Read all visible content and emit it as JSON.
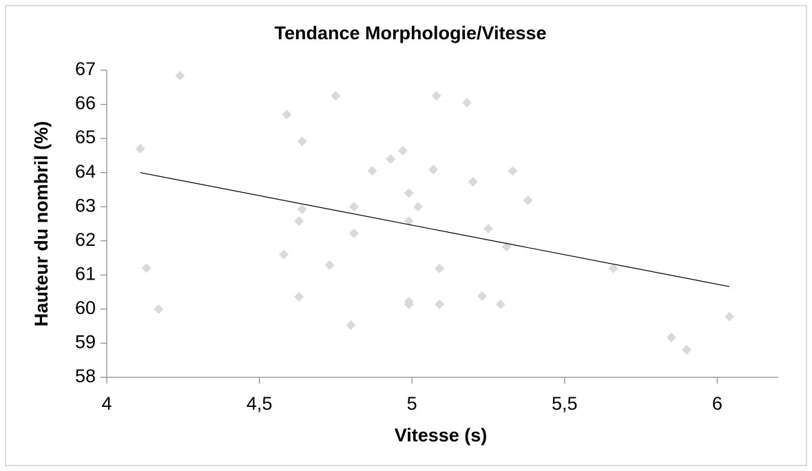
{
  "chart_data": {
    "type": "scatter",
    "title": "Tendance Morphologie/Vitesse",
    "x_label": "Vitesse (s)",
    "y_label": "Hauteur du nombril (%)",
    "color": "#d9d9d9",
    "x": [
      4.11,
      4.13,
      4.17,
      4.24,
      4.59,
      4.64,
      4.64,
      4.63,
      4.58,
      4.63,
      4.75,
      4.73,
      4.81,
      4.81,
      4.8,
      4.87,
      4.93,
      4.97,
      4.99,
      4.99,
      5.02,
      4.99,
      4.99,
      5.08,
      5.07,
      5.09,
      5.09,
      5.18,
      5.2,
      5.25,
      5.23,
      5.29,
      5.31,
      5.33,
      5.38,
      5.66,
      5.85,
      5.9,
      6.04
    ],
    "values": [
      64.7,
      61.2,
      60.0,
      66.84,
      65.7,
      64.92,
      62.92,
      62.58,
      61.6,
      60.36,
      66.25,
      61.29,
      63.0,
      62.22,
      59.53,
      64.05,
      64.4,
      64.64,
      63.4,
      62.58,
      63.0,
      60.22,
      60.14,
      66.25,
      64.09,
      61.19,
      60.14,
      66.05,
      63.73,
      62.36,
      60.38,
      60.14,
      61.83,
      64.05,
      63.19,
      61.19,
      59.17,
      58.81,
      59.78
    ],
    "trendline": {
      "color": "#000000",
      "x": [
        4.11,
        6.04
      ],
      "values": [
        64.0,
        60.66
      ]
    },
    "xlim": [
      4,
      6.2
    ],
    "xticks": [
      4,
      {
        "value": 4.5,
        "label": "4,5"
      },
      5,
      {
        "value": 5.5,
        "label": "5,5"
      },
      6
    ],
    "ylim": [
      58,
      67
    ],
    "yticks": [
      58,
      59,
      60,
      61,
      62,
      63,
      64,
      65,
      66,
      67
    ]
  }
}
